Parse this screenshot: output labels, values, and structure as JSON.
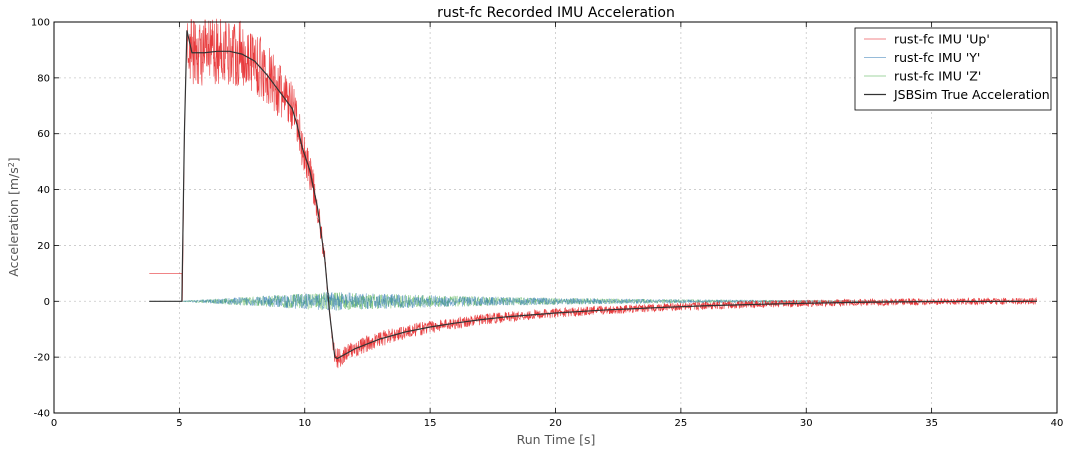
{
  "chart_data": {
    "type": "line",
    "title": "rust-fc Recorded IMU Acceleration",
    "xlabel": "Run Time [s]",
    "ylabel_main": "Acceleration [m/s",
    "ylabel_sup": "2",
    "ylabel_end": "]",
    "xlim": [
      0,
      40
    ],
    "ylim": [
      -40,
      100
    ],
    "xticks": [
      0,
      5,
      10,
      15,
      20,
      25,
      30,
      35,
      40
    ],
    "yticks": [
      -40,
      -20,
      0,
      20,
      40,
      60,
      80,
      100
    ],
    "grid": true,
    "legend_position": "top-right",
    "series": [
      {
        "name": "rust-fc IMU 'Up'",
        "color": "#e41a1c",
        "style": "noisy-thin",
        "x": [
          3.8,
          5.1,
          5.12,
          5.2,
          5.3,
          5.5,
          6.0,
          6.5,
          7.0,
          7.5,
          8.0,
          8.5,
          9.0,
          9.5,
          9.7,
          9.9,
          10.2,
          10.5,
          10.8,
          11.0,
          11.2,
          11.3,
          12,
          13,
          14,
          15,
          16,
          17,
          18,
          20,
          22,
          24,
          26,
          28,
          30,
          32,
          35,
          39.2
        ],
        "y": [
          10,
          10,
          0,
          60,
          97,
          89,
          89,
          89.5,
          89.5,
          88.5,
          86,
          81,
          75,
          69,
          63,
          55,
          47,
          34,
          15,
          -5,
          -20,
          -20.5,
          -17,
          -13.5,
          -11,
          -9.2,
          -7.8,
          -6.6,
          -5.6,
          -4.2,
          -3.1,
          -2.3,
          -1.6,
          -1.1,
          -0.7,
          -0.4,
          -0.1,
          0
        ]
      },
      {
        "name": "rust-fc IMU 'Y'",
        "color": "#377eb8",
        "style": "noise-around-zero",
        "x": [
          3.8,
          5.1,
          6,
          8,
          10,
          11,
          13,
          15,
          20,
          25,
          30,
          35,
          39.2
        ],
        "y": [
          0,
          0,
          0,
          0,
          0,
          0,
          0,
          0,
          0,
          0,
          0,
          0,
          0
        ]
      },
      {
        "name": "rust-fc IMU 'Z'",
        "color": "#4daf4a",
        "style": "noise-around-zero",
        "x": [
          3.8,
          5.1,
          6,
          8,
          10,
          11,
          13,
          15,
          20,
          25,
          30,
          35,
          39.2
        ],
        "y": [
          0,
          0,
          0,
          0,
          0,
          0,
          0,
          0,
          0,
          0,
          0,
          0,
          0
        ]
      },
      {
        "name": "JSBSim True Acceleration",
        "color": "#333333",
        "style": "solid",
        "x": [
          3.8,
          5.1,
          5.2,
          5.3,
          5.5,
          6.0,
          6.5,
          7.0,
          7.5,
          8.0,
          8.5,
          9.0,
          9.5,
          9.7,
          9.9,
          10.2,
          10.5,
          10.8,
          11.0,
          11.2,
          11.3,
          12,
          13,
          14,
          15,
          16,
          17,
          18,
          20,
          22,
          24,
          26,
          28,
          30,
          32,
          35,
          39.2
        ],
        "y": [
          0,
          0,
          60,
          97,
          89,
          89,
          89.5,
          89.5,
          88.5,
          86,
          81,
          75,
          69,
          63,
          55,
          47,
          34,
          15,
          -5,
          -20,
          -20.5,
          -17,
          -13.5,
          -11,
          -9.2,
          -7.8,
          -6.6,
          -5.6,
          -4.2,
          -3.1,
          -2.3,
          -1.6,
          -1.1,
          -0.7,
          -0.4,
          -0.1,
          0
        ]
      }
    ]
  }
}
